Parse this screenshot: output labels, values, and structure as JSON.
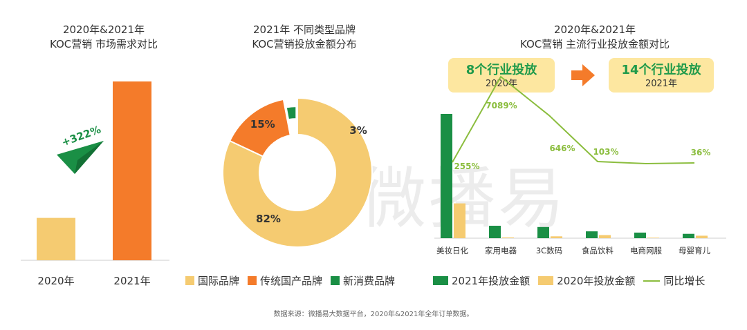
{
  "colors": {
    "yellow": "#f5cb71",
    "orange": "#f47b2a",
    "green": "#1a8f45",
    "lightgreen": "#8bbd3e",
    "gray": "#999999"
  },
  "watermark": "微播易",
  "left_panel": {
    "title_line1": "2020年&2021年",
    "title_line2": "KOC营销 市场需求对比",
    "growth_label": "+322%"
  },
  "middle_panel": {
    "title_line1": "2021年 不同类型品牌",
    "title_line2": "KOC营销投放金额分布"
  },
  "right_panel": {
    "title_line1": "2020年&2021年",
    "title_line2": "KOC营销 主流行业投放金额对比",
    "callout_left": {
      "big": "8个行业投放",
      "small": "2020年"
    },
    "callout_right": {
      "big": "14个行业投放",
      "small": "2021年"
    }
  },
  "source_note": "数据来源：微播易大数据平台，2020年&2021年全年订单数据。",
  "chart_data": [
    {
      "type": "bar",
      "categories": [
        "2020年",
        "2021年"
      ],
      "values": [
        0.237,
        1.0
      ],
      "colors": [
        "#f5cb71",
        "#f47b2a"
      ]
    },
    {
      "type": "pie",
      "slices": [
        {
          "label": "国际品牌",
          "value": 82,
          "display": "82%",
          "color": "#f5cb71"
        },
        {
          "label": "传统国产品牌",
          "value": 15,
          "display": "15%",
          "color": "#f47b2a"
        },
        {
          "label": "新消费品牌",
          "value": 3,
          "display": "3%",
          "color": "#1a8f45"
        }
      ]
    },
    {
      "type": "bar",
      "categories": [
        "美妆日化",
        "家用电器",
        "3C数码",
        "食品饮料",
        "电商网服",
        "母婴育儿"
      ],
      "series": [
        {
          "name": "2021年投放金额",
          "values": [
            100,
            10,
            9,
            5.5,
            4.5,
            3.5
          ],
          "color": "#1a8f45"
        },
        {
          "name": "2020年投放金额",
          "values": [
            28,
            0.6,
            1.5,
            2.5,
            0.4,
            2
          ],
          "color": "#f5cb71"
        },
        {
          "name": "同比增长",
          "type": "line",
          "values": [
            255,
            7089,
            646,
            103,
            null,
            36
          ],
          "labels": [
            "255%",
            "7089%",
            "646%",
            "103%",
            "",
            "36%"
          ],
          "color": "#8bbd3e"
        }
      ]
    }
  ]
}
